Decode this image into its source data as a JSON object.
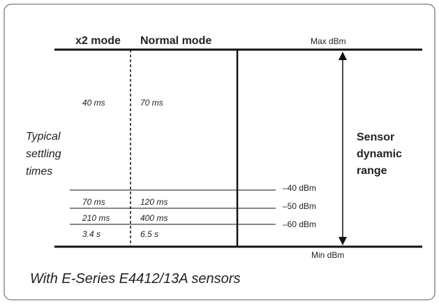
{
  "header": {
    "x2": "x2 mode",
    "normal": "Normal mode",
    "max": "Max dBm"
  },
  "times": [
    [
      "40 ms",
      "70 ms"
    ],
    [
      "70 ms",
      "120 ms"
    ],
    [
      "210 ms",
      "400 ms"
    ],
    [
      "3.4 s",
      "6.5 s"
    ]
  ],
  "levels": [
    "–40 dBm",
    "–50 dBm",
    "–60 dBm"
  ],
  "min": "Min dBm",
  "side_label": [
    "Typical",
    "settling",
    "times"
  ],
  "range_label": [
    "Sensor",
    "dynamic",
    "range"
  ],
  "caption": "With E-Series E4412/13A sensors"
}
